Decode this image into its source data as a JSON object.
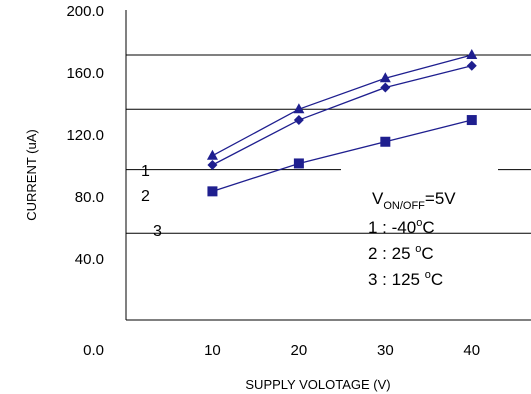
{
  "chart_data": {
    "type": "line",
    "title": "",
    "xlabel": "SUPPLY VOLOTAGE (V)",
    "ylabel": "CURRENT (uA)",
    "xlim": [
      0,
      45
    ],
    "ylim": [
      0,
      200
    ],
    "xticks": [
      10,
      20,
      30,
      40
    ],
    "xtick_labels": [
      "10",
      "20",
      "30",
      "40"
    ],
    "yticks": [
      0,
      40,
      80,
      120,
      160,
      200
    ],
    "ytick_labels": [
      "0.0",
      "40.0",
      "80.0",
      "120.0",
      "160.0",
      "200.0"
    ],
    "grid": "partial horizontal lines at 56, 136, 171 uA",
    "gridlines_y": [
      56,
      136,
      171
    ],
    "partial_gridline_y": 97,
    "series": [
      {
        "name": "1",
        "marker": "triangle",
        "color": "#1f1f8f",
        "x": [
          10,
          20,
          30,
          40
        ],
        "y": [
          106,
          136,
          156,
          171
        ]
      },
      {
        "name": "2",
        "marker": "diamond",
        "color": "#1f1f8f",
        "x": [
          10,
          20,
          30,
          40
        ],
        "y": [
          100,
          129,
          150,
          164
        ]
      },
      {
        "name": "3",
        "marker": "square",
        "color": "#1f1f8f",
        "x": [
          10,
          20,
          30,
          40
        ],
        "y": [
          83,
          101,
          115,
          129
        ]
      }
    ],
    "annotations": {
      "condition_main": "V",
      "condition_sub": "ON/OFF",
      "condition_value": "=5V",
      "legend_lines": [
        {
          "label": "1 : -40",
          "deg": "o",
          "unit": "C"
        },
        {
          "label": "2 : 25 ",
          "deg": "o",
          "unit": "C"
        },
        {
          "label": "3 : 125 ",
          "deg": "o",
          "unit": "C"
        }
      ]
    }
  }
}
